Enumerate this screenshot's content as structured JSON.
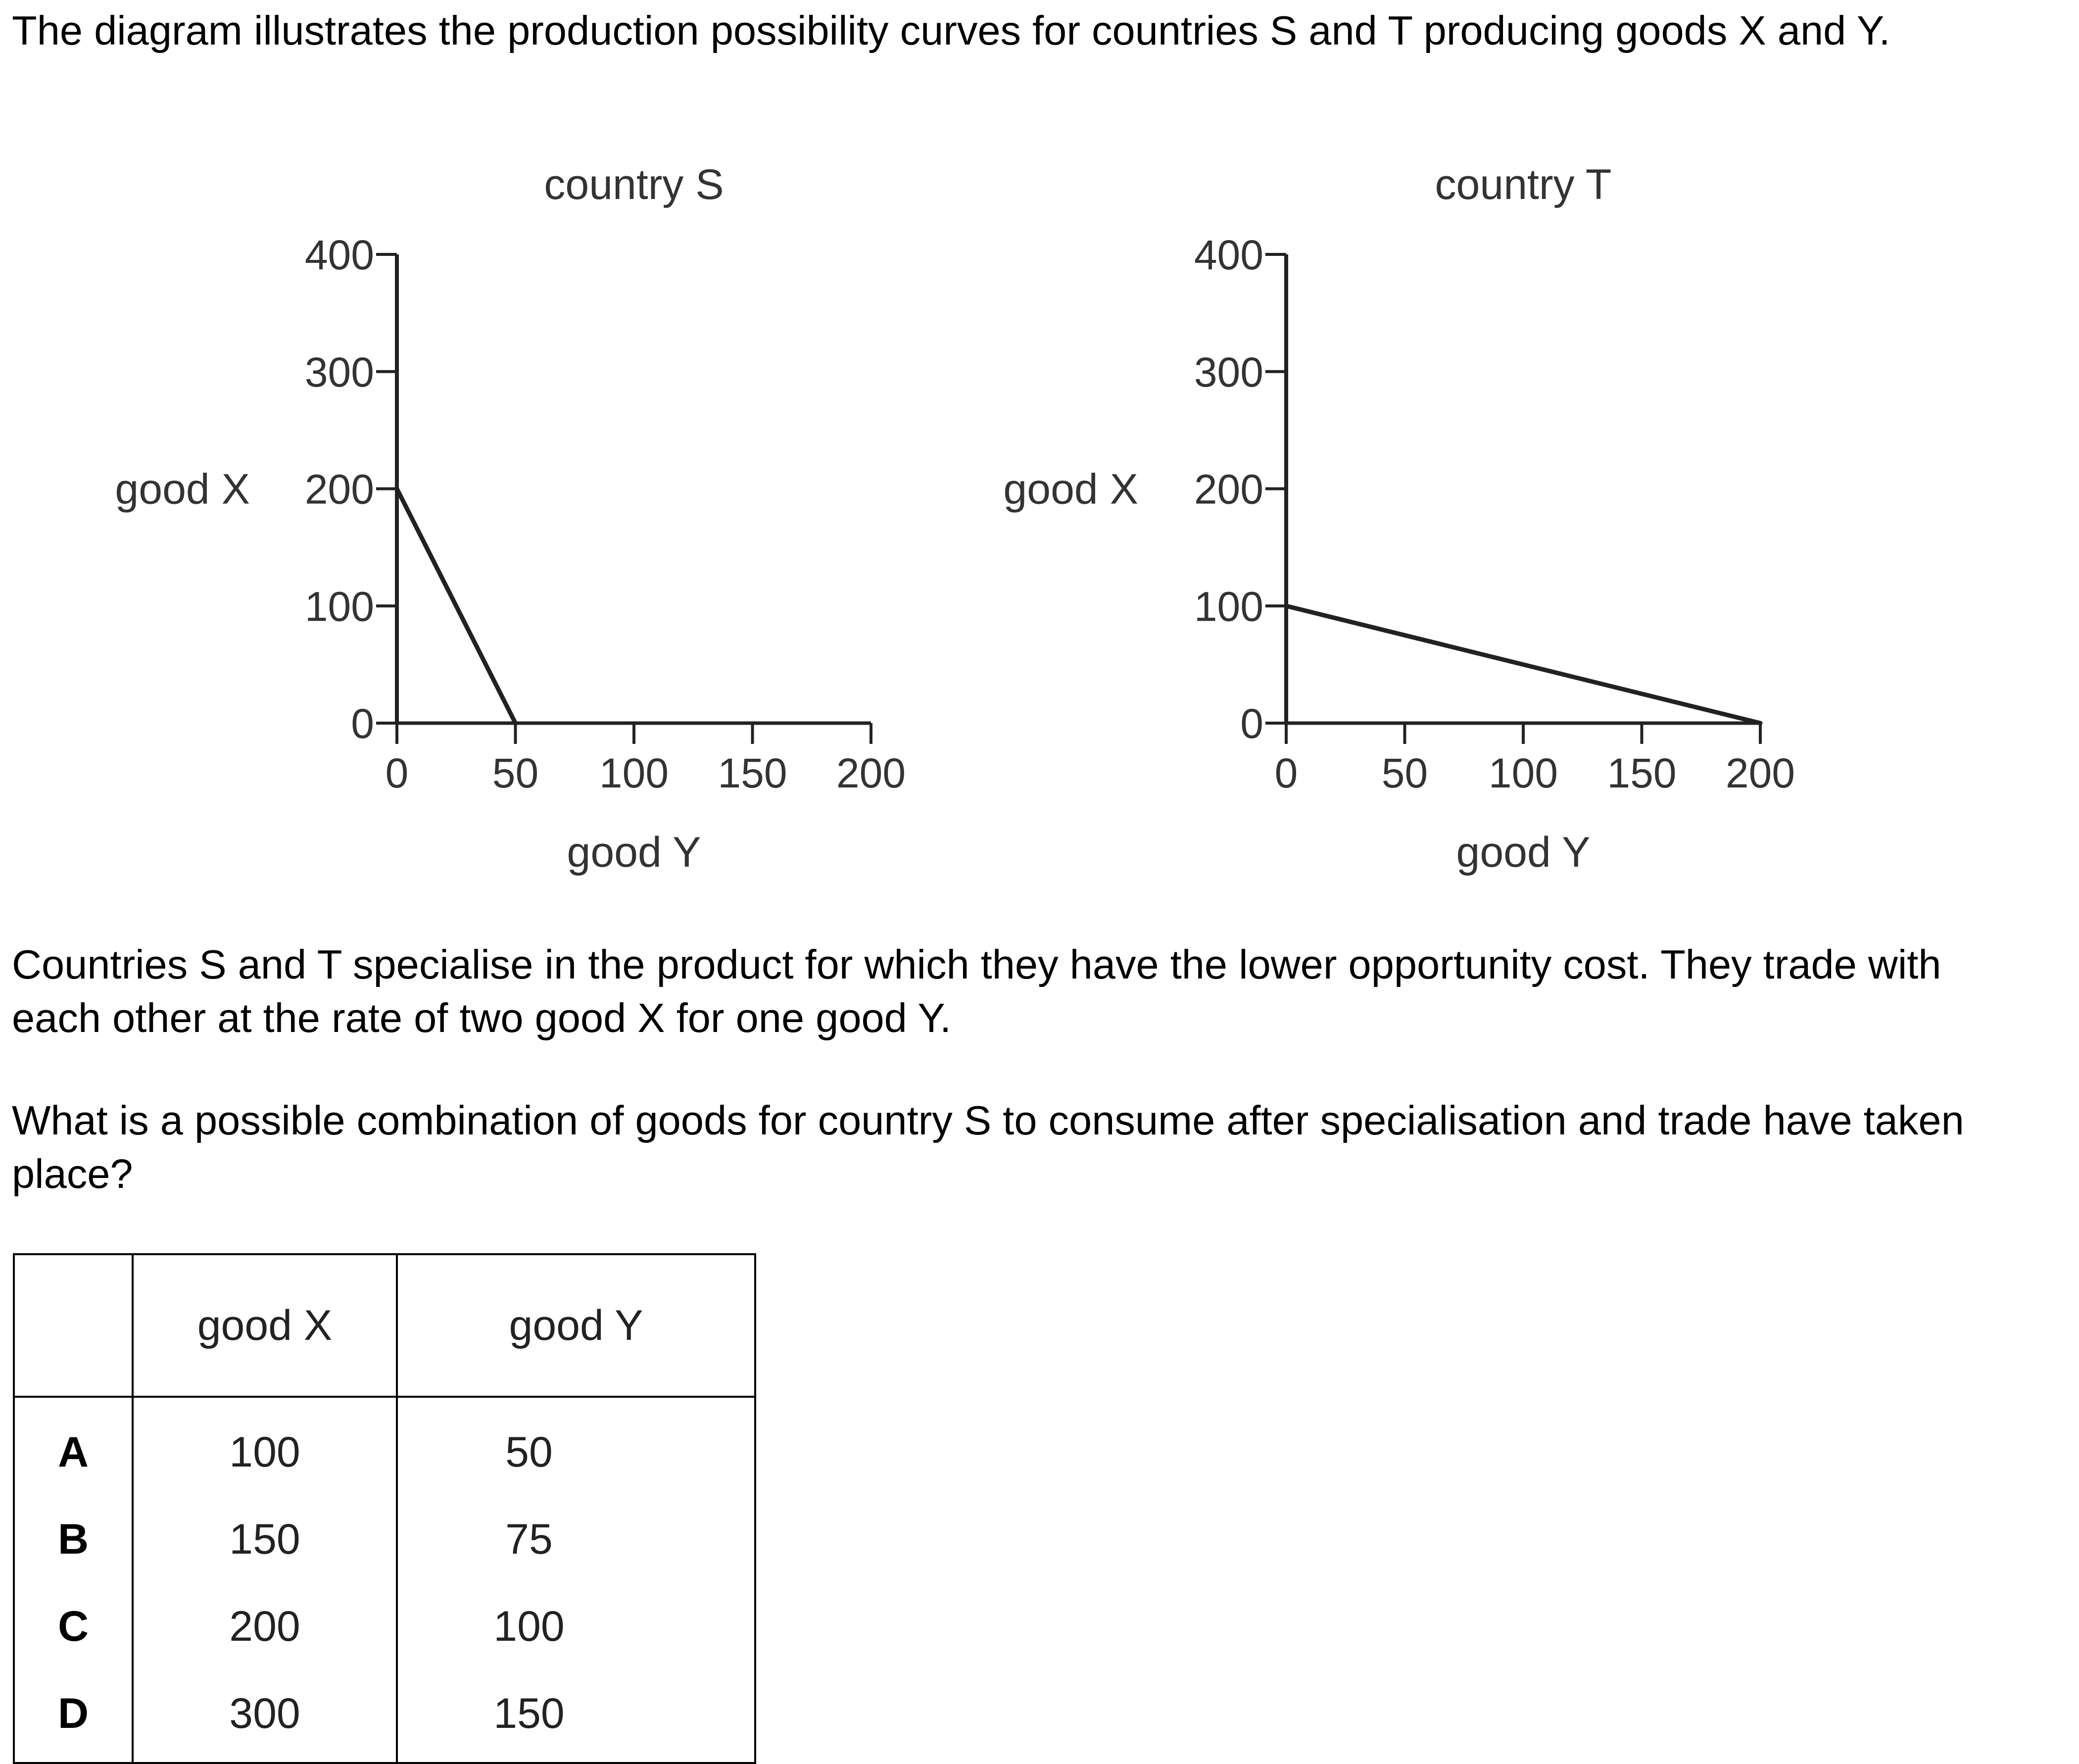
{
  "question": {
    "intro": "The diagram illustrates the production possibility curves for countries S and T producing goods X and Y.",
    "paragraph2": "Countries S and T specialise in the product for which they have the lower opportunity cost. They trade with each other at the rate of two good X for one good Y.",
    "paragraph3": "What is a possible combination of goods for country S to consume after specialisation and trade have taken place?"
  },
  "chart_data": [
    {
      "type": "line",
      "title": "country S",
      "xlabel": "good Y",
      "ylabel": "good X",
      "xlim": [
        0,
        200
      ],
      "ylim": [
        0,
        400
      ],
      "xticks": [
        0,
        50,
        100,
        150,
        200
      ],
      "yticks": [
        0,
        100,
        200,
        300,
        400
      ],
      "series": [
        {
          "x": [
            0,
            50
          ],
          "y": [
            200,
            0
          ]
        }
      ]
    },
    {
      "type": "line",
      "title": "country T",
      "xlabel": "good Y",
      "ylabel": "good X",
      "xlim": [
        0,
        200
      ],
      "ylim": [
        0,
        400
      ],
      "xticks": [
        0,
        50,
        100,
        150,
        200
      ],
      "yticks": [
        0,
        100,
        200,
        300,
        400
      ],
      "series": [
        {
          "x": [
            0,
            200
          ],
          "y": [
            100,
            0
          ]
        }
      ]
    }
  ],
  "answer_table": {
    "headers": [
      "",
      "good X",
      "good Y"
    ],
    "rows": [
      {
        "key": "A",
        "x": "100",
        "y": "50"
      },
      {
        "key": "B",
        "x": "150",
        "y": "75"
      },
      {
        "key": "C",
        "x": "200",
        "y": "100"
      },
      {
        "key": "D",
        "x": "300",
        "y": "150"
      }
    ]
  }
}
